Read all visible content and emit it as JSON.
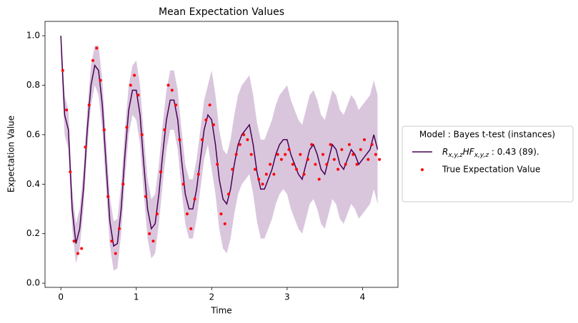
{
  "chart_data": {
    "type": "line",
    "title": "Mean Expectation Values",
    "xlabel": "Time",
    "ylabel": "Expectation Value",
    "xlim": [
      -0.21,
      4.47
    ],
    "ylim": [
      -0.017,
      1.058
    ],
    "xticks": [
      0,
      1,
      2,
      3,
      4
    ],
    "yticks": [
      {
        "value": 0,
        "label": "0.0"
      },
      0.2,
      0.4,
      0.6,
      0.8,
      {
        "value": 1,
        "label": "1.0"
      }
    ],
    "legend_title": "Model : Bayes t-test (instances)",
    "legend_position": "right",
    "line": {
      "name": "R_{x,y,z}HF_{x,y,z} : 0.43 (89).",
      "color": "#4b0055",
      "band_color": "#d9c6dd",
      "x": [
        0,
        0.05,
        0.1,
        0.15,
        0.2,
        0.25,
        0.3,
        0.35,
        0.4,
        0.45,
        0.5,
        0.55,
        0.6,
        0.65,
        0.7,
        0.75,
        0.8,
        0.85,
        0.9,
        0.95,
        1,
        1.05,
        1.1,
        1.15,
        1.2,
        1.25,
        1.3,
        1.35,
        1.4,
        1.45,
        1.5,
        1.55,
        1.6,
        1.65,
        1.7,
        1.75,
        1.8,
        1.85,
        1.9,
        1.95,
        2,
        2.05,
        2.1,
        2.15,
        2.2,
        2.25,
        2.3,
        2.35,
        2.4,
        2.45,
        2.5,
        2.55,
        2.6,
        2.65,
        2.7,
        2.75,
        2.8,
        2.85,
        2.9,
        2.95,
        3,
        3.05,
        3.1,
        3.15,
        3.2,
        3.25,
        3.3,
        3.35,
        3.4,
        3.45,
        3.5,
        3.55,
        3.6,
        3.65,
        3.7,
        3.75,
        3.8,
        3.85,
        3.9,
        3.95,
        4,
        4.05,
        4.1,
        4.15,
        4.2
      ],
      "values": [
        1.0,
        0.68,
        0.62,
        0.3,
        0.16,
        0.22,
        0.38,
        0.62,
        0.8,
        0.88,
        0.86,
        0.72,
        0.48,
        0.25,
        0.15,
        0.16,
        0.3,
        0.52,
        0.7,
        0.78,
        0.78,
        0.68,
        0.48,
        0.3,
        0.22,
        0.24,
        0.36,
        0.52,
        0.66,
        0.74,
        0.74,
        0.66,
        0.5,
        0.36,
        0.3,
        0.3,
        0.38,
        0.5,
        0.62,
        0.68,
        0.66,
        0.56,
        0.42,
        0.34,
        0.32,
        0.38,
        0.48,
        0.56,
        0.6,
        0.62,
        0.64,
        0.56,
        0.45,
        0.38,
        0.38,
        0.42,
        0.46,
        0.52,
        0.56,
        0.58,
        0.58,
        0.52,
        0.48,
        0.44,
        0.42,
        0.48,
        0.54,
        0.56,
        0.52,
        0.46,
        0.44,
        0.5,
        0.56,
        0.54,
        0.48,
        0.46,
        0.5,
        0.54,
        0.52,
        0.48,
        0.5,
        0.52,
        0.54,
        0.6,
        0.54
      ],
      "lower": [
        0.92,
        0.6,
        0.54,
        0.22,
        0.08,
        0.14,
        0.3,
        0.54,
        0.72,
        0.8,
        0.76,
        0.62,
        0.38,
        0.15,
        0.05,
        0.06,
        0.2,
        0.42,
        0.6,
        0.68,
        0.66,
        0.56,
        0.36,
        0.18,
        0.1,
        0.12,
        0.24,
        0.4,
        0.54,
        0.62,
        0.62,
        0.54,
        0.38,
        0.24,
        0.18,
        0.18,
        0.26,
        0.38,
        0.5,
        0.56,
        0.46,
        0.36,
        0.22,
        0.14,
        0.12,
        0.18,
        0.28,
        0.36,
        0.4,
        0.42,
        0.44,
        0.36,
        0.25,
        0.18,
        0.18,
        0.22,
        0.26,
        0.32,
        0.36,
        0.38,
        0.36,
        0.3,
        0.26,
        0.22,
        0.2,
        0.26,
        0.32,
        0.34,
        0.3,
        0.24,
        0.22,
        0.28,
        0.34,
        0.32,
        0.26,
        0.24,
        0.28,
        0.32,
        0.3,
        0.26,
        0.28,
        0.3,
        0.32,
        0.38,
        0.32
      ],
      "upper": [
        1.0,
        0.76,
        0.7,
        0.38,
        0.24,
        0.3,
        0.46,
        0.7,
        0.88,
        0.96,
        0.96,
        0.82,
        0.58,
        0.35,
        0.25,
        0.26,
        0.4,
        0.62,
        0.8,
        0.88,
        0.9,
        0.8,
        0.6,
        0.42,
        0.34,
        0.36,
        0.48,
        0.64,
        0.78,
        0.86,
        0.86,
        0.78,
        0.62,
        0.48,
        0.42,
        0.42,
        0.5,
        0.62,
        0.74,
        0.8,
        0.86,
        0.76,
        0.62,
        0.54,
        0.52,
        0.58,
        0.68,
        0.76,
        0.8,
        0.82,
        0.84,
        0.76,
        0.65,
        0.58,
        0.58,
        0.62,
        0.66,
        0.72,
        0.76,
        0.78,
        0.8,
        0.74,
        0.7,
        0.66,
        0.64,
        0.7,
        0.76,
        0.78,
        0.74,
        0.68,
        0.66,
        0.72,
        0.78,
        0.76,
        0.7,
        0.68,
        0.72,
        0.76,
        0.74,
        0.7,
        0.72,
        0.74,
        0.76,
        0.82,
        0.76
      ]
    },
    "scatter": {
      "name": "True Expectation Value",
      "color": "#ff0000",
      "x": [
        0.025,
        0.075,
        0.125,
        0.175,
        0.225,
        0.275,
        0.325,
        0.375,
        0.425,
        0.475,
        0.525,
        0.575,
        0.625,
        0.675,
        0.725,
        0.775,
        0.825,
        0.875,
        0.925,
        0.975,
        1.025,
        1.075,
        1.125,
        1.175,
        1.225,
        1.275,
        1.325,
        1.375,
        1.425,
        1.475,
        1.525,
        1.575,
        1.625,
        1.675,
        1.725,
        1.775,
        1.825,
        1.875,
        1.925,
        1.975,
        2.025,
        2.075,
        2.125,
        2.175,
        2.225,
        2.275,
        2.325,
        2.375,
        2.425,
        2.475,
        2.525,
        2.575,
        2.625,
        2.675,
        2.725,
        2.775,
        2.825,
        2.875,
        2.925,
        2.975,
        3.025,
        3.075,
        3.125,
        3.175,
        3.225,
        3.275,
        3.325,
        3.375,
        3.425,
        3.475,
        3.525,
        3.575,
        3.625,
        3.675,
        3.725,
        3.775,
        3.825,
        3.875,
        3.925,
        3.975,
        4.025,
        4.075,
        4.125,
        4.175,
        4.225
      ],
      "values": [
        0.86,
        0.7,
        0.45,
        0.17,
        0.12,
        0.14,
        0.55,
        0.72,
        0.9,
        0.95,
        0.82,
        0.62,
        0.35,
        0.17,
        0.12,
        0.22,
        0.4,
        0.63,
        0.8,
        0.84,
        0.76,
        0.6,
        0.35,
        0.2,
        0.17,
        0.28,
        0.45,
        0.62,
        0.8,
        0.78,
        0.72,
        0.58,
        0.4,
        0.28,
        0.22,
        0.34,
        0.44,
        0.58,
        0.66,
        0.72,
        0.64,
        0.48,
        0.28,
        0.24,
        0.36,
        0.46,
        0.52,
        0.56,
        0.6,
        0.58,
        0.52,
        0.46,
        0.42,
        0.4,
        0.44,
        0.48,
        0.44,
        0.52,
        0.5,
        0.52,
        0.54,
        0.48,
        0.46,
        0.52,
        0.44,
        0.5,
        0.56,
        0.48,
        0.42,
        0.52,
        0.48,
        0.56,
        0.5,
        0.46,
        0.54,
        0.48,
        0.56,
        0.52,
        0.48,
        0.54,
        0.58,
        0.5,
        0.56,
        0.52,
        0.5
      ]
    }
  }
}
